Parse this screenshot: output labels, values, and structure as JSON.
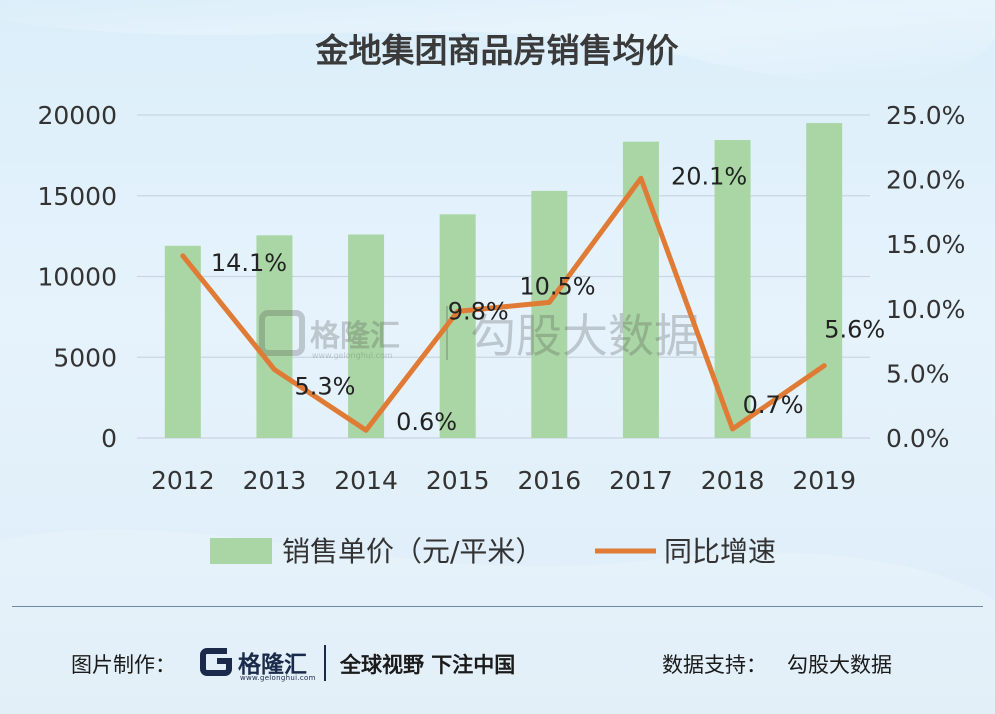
{
  "chart_data": {
    "type": "bar+line",
    "title": "金地集团商品房销售均价",
    "categories": [
      "2012",
      "2013",
      "2014",
      "2015",
      "2016",
      "2017",
      "2018",
      "2019"
    ],
    "series": [
      {
        "name": "销售单价（元/平米）",
        "type": "bar",
        "axis": "left",
        "color": "#a9d6a4",
        "values": [
          11900,
          12550,
          12600,
          13850,
          15300,
          18350,
          18450,
          19500
        ]
      },
      {
        "name": "同比增速",
        "type": "line",
        "axis": "right",
        "color": "#e07b35",
        "values": [
          14.1,
          5.3,
          0.6,
          9.8,
          10.5,
          20.1,
          0.7,
          5.6
        ],
        "labels": [
          "14.1%",
          "5.3%",
          "0.6%",
          "9.8%",
          "10.5%",
          "20.1%",
          "0.7%",
          "5.6%"
        ]
      }
    ],
    "y_left": {
      "min": 0,
      "max": 20000,
      "ticks": [
        "0",
        "5000",
        "10000",
        "15000",
        "20000"
      ]
    },
    "y_right": {
      "min": 0,
      "max": 25,
      "ticks": [
        "0.0%",
        "5.0%",
        "10.0%",
        "15.0%",
        "20.0%",
        "25.0%"
      ]
    },
    "grid": true,
    "legend": "bottom"
  },
  "watermark": {
    "brand": "格隆汇",
    "url": "www.gelonghui.com",
    "source": "勾股大数据"
  },
  "footer": {
    "made_by_label": "图片制作：",
    "logo_text": "格隆汇",
    "logo_url": "www.gelonghui.com",
    "slogan": "全球视野 下注中国",
    "data_support_label": "数据支持：",
    "data_source": "勾股大数据"
  }
}
